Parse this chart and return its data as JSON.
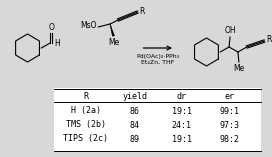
{
  "table_headers": [
    "R",
    "yield",
    "dr",
    "er"
  ],
  "table_rows": [
    [
      "H (2a)",
      "86",
      "19:1",
      "99:1"
    ],
    [
      "TMS (2b)",
      "84",
      "24:1",
      "97:3"
    ],
    [
      "TIPS (2c)",
      "89",
      "19:1",
      "98:2"
    ]
  ],
  "catalyst_line1": "Pd(OAc)₂·PPh₃",
  "catalyst_line2": "Et₂Zn, THF",
  "bg_color": "#d8d8d8",
  "font_size": 6.0,
  "header_font_size": 6.0,
  "fig_width": 2.72,
  "fig_height": 1.57,
  "dpi": 100
}
